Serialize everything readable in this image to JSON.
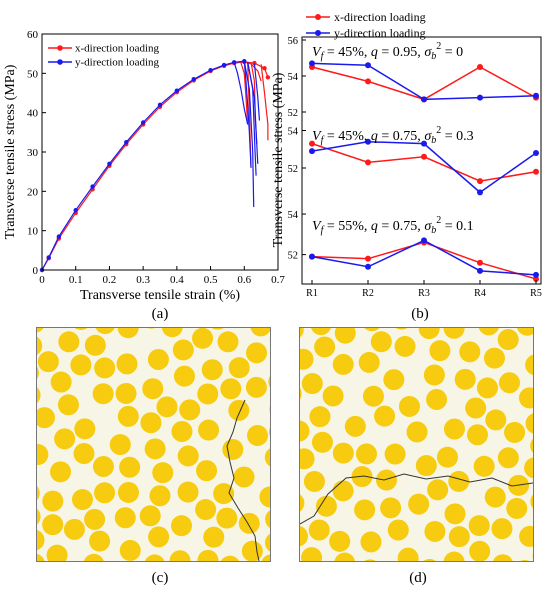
{
  "captions": {
    "a": "(a)",
    "b": "(b)",
    "c": "(c)",
    "d": "(d)"
  },
  "chart_data": [
    {
      "type": "line",
      "xlabel": "Transverse tensile strain (%)",
      "ylabel": "Transverse tensile stress (MPa)",
      "xlim": [
        0,
        0.7
      ],
      "ylim": [
        0,
        60
      ],
      "xticks": [
        "0",
        "0.1",
        "0.2",
        "0.3",
        "0.4",
        "0.5",
        "0.6",
        "0.7"
      ],
      "yticks": [
        "0",
        "10",
        "20",
        "30",
        "40",
        "50",
        "60"
      ],
      "legend_position": "top-left",
      "series": [
        {
          "name": "x-direction loading",
          "color": "#ff1a1a",
          "marker": "circle",
          "curves": [
            [
              [
                0,
                0
              ],
              [
                0.02,
                3
              ],
              [
                0.05,
                8
              ],
              [
                0.1,
                14.5
              ],
              [
                0.15,
                20.5
              ],
              [
                0.2,
                26.5
              ],
              [
                0.25,
                32
              ],
              [
                0.3,
                37
              ],
              [
                0.35,
                41.5
              ],
              [
                0.4,
                45.2
              ],
              [
                0.45,
                48.2
              ],
              [
                0.5,
                50.6
              ],
              [
                0.54,
                51.9
              ],
              [
                0.57,
                52.6
              ],
              [
                0.6,
                52.9
              ],
              [
                0.63,
                52.6
              ],
              [
                0.66,
                51.3
              ],
              [
                0.67,
                49
              ]
            ],
            [
              [
                0.6,
                52.9
              ],
              [
                0.62,
                52.4
              ],
              [
                0.64,
                50.6
              ],
              [
                0.65,
                48
              ]
            ],
            [
              [
                0.59,
                52.7
              ],
              [
                0.6,
                50
              ],
              [
                0.605,
                44
              ],
              [
                0.61,
                37
              ]
            ],
            [
              [
                0.62,
                52.8
              ],
              [
                0.63,
                48
              ],
              [
                0.633,
                38
              ],
              [
                0.637,
                32
              ]
            ],
            [
              [
                0.65,
                52.3
              ],
              [
                0.66,
                45
              ],
              [
                0.67,
                37
              ],
              [
                0.67,
                33
              ]
            ],
            [
              [
                0.61,
                52.9
              ],
              [
                0.615,
                40
              ],
              [
                0.62,
                26
              ]
            ]
          ]
        },
        {
          "name": "y-direction loading",
          "color": "#1a1aee",
          "marker": "circle",
          "curves": [
            [
              [
                0,
                0
              ],
              [
                0.02,
                3.2
              ],
              [
                0.05,
                8.5
              ],
              [
                0.1,
                15.2
              ],
              [
                0.15,
                21.2
              ],
              [
                0.2,
                27
              ],
              [
                0.25,
                32.5
              ],
              [
                0.3,
                37.5
              ],
              [
                0.35,
                42
              ],
              [
                0.4,
                45.6
              ],
              [
                0.45,
                48.5
              ],
              [
                0.5,
                50.8
              ],
              [
                0.54,
                52.1
              ],
              [
                0.57,
                52.8
              ],
              [
                0.6,
                53.1
              ]
            ],
            [
              [
                0.57,
                52.8
              ],
              [
                0.58,
                50
              ],
              [
                0.59,
                46
              ],
              [
                0.6,
                41
              ],
              [
                0.61,
                37
              ]
            ],
            [
              [
                0.6,
                53.1
              ],
              [
                0.605,
                48
              ],
              [
                0.61,
                42
              ],
              [
                0.615,
                35
              ],
              [
                0.62,
                26
              ]
            ],
            [
              [
                0.6,
                53.1
              ],
              [
                0.615,
                46
              ],
              [
                0.625,
                30
              ],
              [
                0.628,
                16
              ]
            ],
            [
              [
                0.61,
                52.9
              ],
              [
                0.625,
                46
              ],
              [
                0.632,
                30
              ],
              [
                0.635,
                24
              ]
            ],
            [
              [
                0.61,
                52.9
              ],
              [
                0.63,
                44
              ],
              [
                0.64,
                27
              ]
            ],
            [
              [
                0.63,
                52.5
              ],
              [
                0.64,
                44
              ],
              [
                0.645,
                38
              ]
            ]
          ]
        }
      ]
    },
    {
      "type": "line",
      "ylabel": "Transverse tensile stress (MPa)",
      "categories": [
        "R1",
        "R2",
        "R3",
        "R4",
        "R5"
      ],
      "legend_position": "top",
      "series_names": [
        "x-direction loading",
        "y-direction loading"
      ],
      "colors": {
        "x": "#ff1a1a",
        "y": "#1a1aee"
      },
      "panels": [
        {
          "annotation": {
            "vf": "V",
            "vf_sub": "f",
            "vf_val": " = 45%,  ",
            "q": "q",
            "q_val": " = 0.95,  ",
            "s": "σ",
            "s_sub": "b",
            "s_sup": "2",
            "s_val": " = 0"
          },
          "ylim": [
            52,
            56
          ],
          "yticks": [
            "52",
            "54",
            "56"
          ],
          "x": [
            54.5,
            53.7,
            52.7,
            54.5,
            52.8
          ],
          "y": [
            54.7,
            54.6,
            52.7,
            52.8,
            52.9
          ]
        },
        {
          "annotation": {
            "vf": "V",
            "vf_sub": "f",
            "vf_val": " = 45%,  ",
            "q": "q",
            "q_val": " = 0.75,  ",
            "s": "σ",
            "s_sub": "b",
            "s_sup": "2",
            "s_val": " = 0.3"
          },
          "ylim": [
            50.4,
            54.4
          ],
          "yticks": [
            "52",
            "54"
          ],
          "x": [
            53.3,
            52.3,
            52.6,
            51.3,
            51.8
          ],
          "y": [
            52.9,
            53.4,
            53.3,
            50.7,
            52.8
          ]
        },
        {
          "annotation": {
            "vf": "V",
            "vf_sub": "f",
            "vf_val": " = 55%,  ",
            "q": "q",
            "q_val": " = 0.75,  ",
            "s": "σ",
            "s_sub": "b",
            "s_sup": "2",
            "s_val": " = 0.1"
          },
          "ylim": [
            50.6,
            54.2
          ],
          "yticks": [
            "52",
            "54"
          ],
          "x": [
            51.9,
            51.8,
            52.6,
            51.6,
            50.8
          ],
          "y": [
            51.9,
            51.4,
            52.7,
            51.2,
            51.0
          ]
        }
      ]
    }
  ]
}
